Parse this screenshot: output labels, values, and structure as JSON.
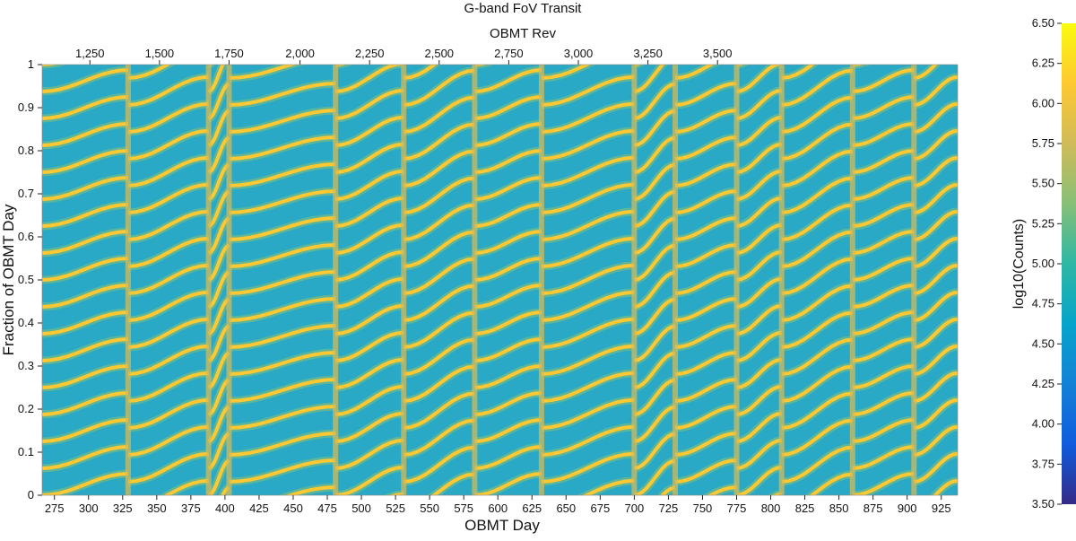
{
  "chart_data": {
    "type": "heatmap",
    "title": "G-band FoV Transit",
    "xlabel": "OBMT Day",
    "ylabel": "Fraction of OBMT Day",
    "x2label": "OBMT Rev",
    "colorbar_label": "log10(Counts)",
    "xlim": [
      266,
      937
    ],
    "ylim": [
      0,
      1
    ],
    "x_ticks": [
      275,
      300,
      325,
      350,
      375,
      400,
      425,
      450,
      475,
      500,
      525,
      550,
      575,
      600,
      625,
      650,
      675,
      700,
      725,
      750,
      775,
      800,
      825,
      850,
      875,
      900,
      925
    ],
    "y_ticks": [
      0,
      0.1,
      0.2,
      0.3,
      0.4,
      0.5,
      0.6,
      0.7,
      0.8,
      0.9,
      1
    ],
    "y_tick_labels": [
      "0",
      "0.1",
      "0.2",
      "0.3",
      "0.4",
      "0.5",
      "0.6",
      "0.7",
      "0.8",
      "0.9",
      "1"
    ],
    "rev_ticks": [
      {
        "label": "1,250",
        "day": 301
      },
      {
        "label": "1,500",
        "day": 352
      },
      {
        "label": "1,750",
        "day": 403
      },
      {
        "label": "2,000",
        "day": 455
      },
      {
        "label": "2,250",
        "day": 506
      },
      {
        "label": "2,500",
        "day": 557
      },
      {
        "label": "2,750",
        "day": 608
      },
      {
        "label": "3,000",
        "day": 659
      },
      {
        "label": "3,250",
        "day": 710
      },
      {
        "label": "3,500",
        "day": 761
      }
    ],
    "colorbar": {
      "range": [
        3.5,
        6.5
      ],
      "ticks": [
        "3.50",
        "3.75",
        "4.00",
        "4.25",
        "4.50",
        "4.75",
        "5.00",
        "5.25",
        "5.50",
        "5.75",
        "6.00",
        "6.25",
        "6.50"
      ],
      "colors": [
        "#352a87",
        "#0f5cdd",
        "#1481d6",
        "#06a4ca",
        "#2eb7a4",
        "#87bf77",
        "#d1bb59",
        "#fec832",
        "#f9fb0e"
      ]
    },
    "pattern": {
      "stripe_period_fraction": 0.0625,
      "band_boundaries_day": [
        266,
        329,
        388,
        403,
        481,
        531,
        583,
        632,
        700,
        730,
        775,
        808,
        860,
        905,
        937
      ]
    }
  }
}
